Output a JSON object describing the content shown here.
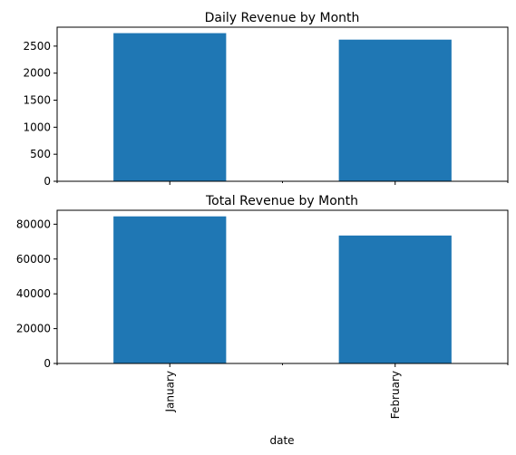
{
  "colors": {
    "bar": "#1f77b4",
    "axis": "#000000",
    "background": "#ffffff"
  },
  "chart_data": [
    {
      "type": "bar",
      "title": "Daily Revenue by Month",
      "categories": [
        "January",
        "February"
      ],
      "values": [
        2740,
        2620
      ],
      "ylim": [
        0,
        2850
      ],
      "yticks": [
        0,
        500,
        1000,
        1500,
        2000,
        2500
      ],
      "xlabel": "",
      "ylabel": "",
      "grid": false,
      "show_x_tick_labels": false
    },
    {
      "type": "bar",
      "title": "Total Revenue by Month",
      "categories": [
        "January",
        "February"
      ],
      "values": [
        84500,
        73500
      ],
      "ylim": [
        0,
        88000
      ],
      "yticks": [
        0,
        20000,
        40000,
        60000,
        80000
      ],
      "xlabel": "date",
      "ylabel": "",
      "grid": false,
      "show_x_tick_labels": true
    }
  ]
}
